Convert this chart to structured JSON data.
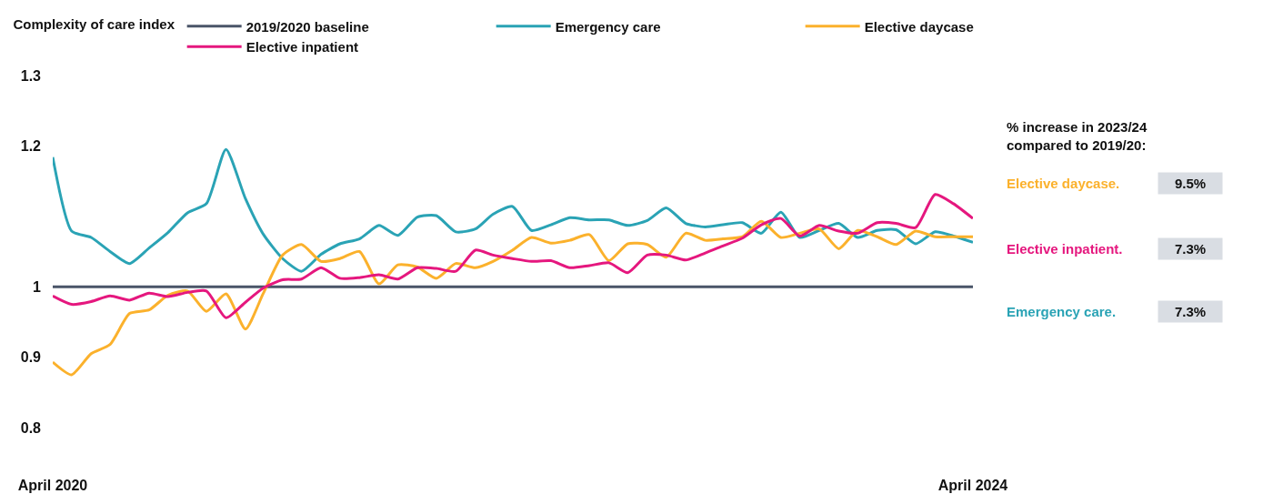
{
  "chart_data": {
    "type": "line",
    "legend_title": "Complexity of care index",
    "legend": "top",
    "x": [
      "2020-04",
      "2020-05",
      "2020-06",
      "2020-07",
      "2020-08",
      "2020-09",
      "2020-10",
      "2020-11",
      "2020-12",
      "2021-01",
      "2021-02",
      "2021-03",
      "2021-04",
      "2021-05",
      "2021-06",
      "2021-07",
      "2021-08",
      "2021-09",
      "2021-10",
      "2021-11",
      "2021-12",
      "2022-01",
      "2022-02",
      "2022-03",
      "2022-04",
      "2022-05",
      "2022-06",
      "2022-07",
      "2022-08",
      "2022-09",
      "2022-10",
      "2022-11",
      "2022-12",
      "2023-01",
      "2023-02",
      "2023-03",
      "2023-04",
      "2023-05",
      "2023-06",
      "2023-07",
      "2023-08",
      "2023-09",
      "2023-10",
      "2023-11",
      "2023-12",
      "2024-01",
      "2024-02",
      "2024-03",
      "2024-04"
    ],
    "series": [
      {
        "name": "2019/2020 baseline",
        "color": "#4a5568",
        "x": [
          "2020-04",
          "2024-04"
        ],
        "values": [
          1,
          1
        ]
      },
      {
        "name": "Emergency care",
        "color": "#2aa3b5",
        "values": [
          1.184,
          1.079,
          1.07,
          1.05,
          1.033,
          1.055,
          1.077,
          1.105,
          1.118,
          1.195,
          1.125,
          1.075,
          1.04,
          1.022,
          1.046,
          1.061,
          1.068,
          1.087,
          1.073,
          1.099,
          1.101,
          1.078,
          1.082,
          1.103,
          1.114,
          1.08,
          1.088,
          1.098,
          1.095,
          1.095,
          1.087,
          1.094,
          1.112,
          1.09,
          1.085,
          1.088,
          1.091,
          1.076,
          1.106,
          1.07,
          1.08,
          1.09,
          1.07,
          1.08,
          1.081,
          1.061,
          1.078,
          1.072,
          1.063
        ]
      },
      {
        "name": "Elective daycase",
        "color": "#fbb12c",
        "values": [
          0.893,
          0.875,
          0.905,
          0.918,
          0.962,
          0.967,
          0.988,
          0.994,
          0.965,
          0.99,
          0.94,
          0.99,
          1.045,
          1.06,
          1.036,
          1.04,
          1.05,
          1.004,
          1.031,
          1.028,
          1.012,
          1.033,
          1.027,
          1.036,
          1.052,
          1.07,
          1.062,
          1.066,
          1.074,
          1.037,
          1.061,
          1.06,
          1.042,
          1.076,
          1.066,
          1.068,
          1.071,
          1.093,
          1.07,
          1.076,
          1.082,
          1.054,
          1.08,
          1.071,
          1.06,
          1.079,
          1.071,
          1.071,
          1.071
        ]
      },
      {
        "name": "Elective inpatient",
        "color": "#e5177e",
        "values": [
          0.987,
          0.975,
          0.979,
          0.987,
          0.981,
          0.991,
          0.986,
          0.992,
          0.994,
          0.956,
          0.978,
          0.998,
          1.01,
          1.011,
          1.027,
          1.012,
          1.013,
          1.017,
          1.011,
          1.027,
          1.026,
          1.022,
          1.052,
          1.045,
          1.04,
          1.036,
          1.037,
          1.027,
          1.03,
          1.034,
          1.02,
          1.045,
          1.045,
          1.038,
          1.048,
          1.058,
          1.069,
          1.088,
          1.097,
          1.072,
          1.087,
          1.079,
          1.076,
          1.091,
          1.09,
          1.084,
          1.131,
          1.118,
          1.097
        ]
      }
    ],
    "xlim": [
      "2020-04",
      "2024-04"
    ],
    "xticks": [
      {
        "value": "2020-04",
        "label": "April 2020"
      },
      {
        "value": "2024-04",
        "label": "April 2024"
      }
    ],
    "ylim": [
      0.8,
      1.3
    ],
    "yticks": [
      0.8,
      0.9,
      1,
      1.2,
      1.3
    ],
    "marker": "none",
    "line_style": "solid",
    "annotations": [
      "% increase in 2023/24 compared to 2019/20:",
      "Elective daycase.",
      "9.5%",
      "Elective inpatient.",
      "7.3%",
      "Emergency care.",
      "7.3%"
    ]
  }
}
